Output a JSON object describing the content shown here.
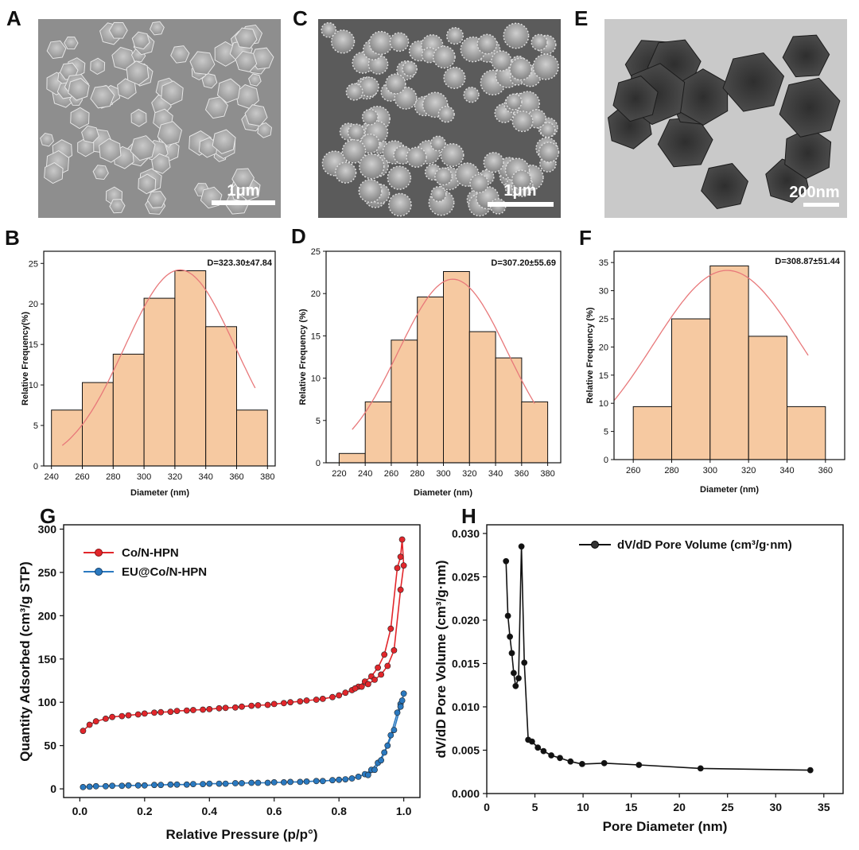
{
  "panel_labels": {
    "A": "A",
    "B": "B",
    "C": "C",
    "D": "D",
    "E": "E",
    "F": "F",
    "G": "G",
    "H": "H"
  },
  "micrographs": [
    {
      "panel": "A",
      "scale_bar": "1μm",
      "tone": "sem-smooth"
    },
    {
      "panel": "C",
      "scale_bar": "1μm",
      "tone": "sem-rough"
    },
    {
      "panel": "E",
      "scale_bar": "200nm",
      "tone": "tem"
    }
  ],
  "colors": {
    "bar_fill": "#f6c9a1",
    "fit_line": "#e8787a",
    "co_n_hpn": "#e2262b",
    "eu_co_n_hpn": "#2a79c0",
    "pore_line": "#111111"
  },
  "chart_data": [
    {
      "panel": "B",
      "type": "bar",
      "annotation": "D=323.30±47.84",
      "xlabel": "Diameter (nm)",
      "ylabel": "Relative Frequency(%)",
      "xlim": [
        235,
        385
      ],
      "ylim": [
        0,
        26.5
      ],
      "xticks": [
        240,
        260,
        280,
        300,
        320,
        340,
        360,
        380
      ],
      "yticks": [
        0,
        5,
        10,
        15,
        20,
        25
      ],
      "bins": [
        [
          240,
          260
        ],
        [
          260,
          280
        ],
        [
          280,
          300
        ],
        [
          300,
          320
        ],
        [
          320,
          340
        ],
        [
          340,
          360
        ],
        [
          360,
          380
        ]
      ],
      "values": [
        6.9,
        10.3,
        13.8,
        20.7,
        24.1,
        17.2,
        6.9
      ],
      "fit": {
        "mu": 323.3,
        "sigma": 47.84,
        "peak": 24.2,
        "from": 247,
        "to": 372
      }
    },
    {
      "panel": "D",
      "type": "bar",
      "annotation": "D=307.20±55.69",
      "xlabel": "Diameter (nm)",
      "ylabel": "Relative Frequency (%)",
      "xlim": [
        210,
        390
      ],
      "ylim": [
        0,
        25
      ],
      "xticks": [
        220,
        240,
        260,
        280,
        300,
        320,
        340,
        360,
        380
      ],
      "yticks": [
        0,
        5,
        10,
        15,
        20,
        25
      ],
      "bins": [
        [
          220,
          240
        ],
        [
          240,
          260
        ],
        [
          260,
          280
        ],
        [
          280,
          300
        ],
        [
          300,
          320
        ],
        [
          320,
          340
        ],
        [
          340,
          360
        ],
        [
          360,
          380
        ]
      ],
      "values": [
        1.1,
        7.2,
        14.5,
        19.6,
        22.6,
        15.5,
        12.4,
        7.2
      ],
      "fit": {
        "mu": 307.2,
        "sigma": 55.69,
        "peak": 21.7,
        "from": 230,
        "to": 370
      }
    },
    {
      "panel": "F",
      "type": "bar",
      "annotation": "D=308.87±51.44",
      "xlabel": "Diameter (nm)",
      "ylabel": "Relative Frequency (%)",
      "xlim": [
        250,
        370
      ],
      "ylim": [
        0,
        37
      ],
      "xticks": [
        260,
        280,
        300,
        320,
        340,
        360
      ],
      "yticks": [
        0,
        5,
        10,
        15,
        20,
        25,
        30,
        35
      ],
      "bins": [
        [
          260,
          280
        ],
        [
          280,
          300
        ],
        [
          300,
          320
        ],
        [
          320,
          340
        ],
        [
          340,
          360
        ]
      ],
      "values": [
        9.4,
        25.0,
        34.4,
        21.9,
        9.4
      ],
      "fit": {
        "mu": 308.87,
        "sigma": 51.44,
        "peak": 33.6,
        "from": 250,
        "to": 351
      }
    },
    {
      "panel": "G",
      "type": "line",
      "xlabel": "Relative Pressure (p/p°)",
      "ylabel": "Quantity Adsorbed (cm³/g STP)",
      "xlim": [
        -0.05,
        1.05
      ],
      "ylim": [
        -10,
        305
      ],
      "xticks": [
        0.0,
        0.2,
        0.4,
        0.6,
        0.8,
        1.0
      ],
      "yticks": [
        0,
        50,
        100,
        150,
        200,
        250,
        300
      ],
      "legend_position": "top-left",
      "series": [
        {
          "name": "Co/N-HPN",
          "color": "#e2262b",
          "x": [
            0.01,
            0.03,
            0.05,
            0.08,
            0.1,
            0.13,
            0.15,
            0.18,
            0.2,
            0.23,
            0.25,
            0.28,
            0.3,
            0.33,
            0.35,
            0.38,
            0.4,
            0.43,
            0.45,
            0.48,
            0.5,
            0.53,
            0.55,
            0.58,
            0.6,
            0.63,
            0.65,
            0.68,
            0.7,
            0.73,
            0.75,
            0.78,
            0.8,
            0.82,
            0.84,
            0.86,
            0.88,
            0.9,
            0.92,
            0.94,
            0.96,
            0.98,
            0.99,
            0.995,
            1.0,
            0.99,
            0.97,
            0.95,
            0.93,
            0.91,
            0.89,
            0.87,
            0.85
          ],
          "y": [
            67,
            74,
            78,
            81,
            83,
            84,
            85,
            86,
            87,
            88,
            88.5,
            89,
            90,
            90.5,
            91,
            91.5,
            92,
            93,
            93.5,
            94,
            95,
            96,
            96.5,
            97,
            98,
            99,
            100,
            101,
            102,
            103,
            104,
            106,
            108,
            111,
            114,
            118,
            124,
            130,
            140,
            155,
            185,
            255,
            268,
            288,
            258,
            230,
            160,
            142,
            132,
            126,
            121,
            118,
            116
          ]
        },
        {
          "name": "EU@Co/N-HPN",
          "color": "#2a79c0",
          "x": [
            0.01,
            0.03,
            0.05,
            0.08,
            0.1,
            0.13,
            0.15,
            0.18,
            0.2,
            0.23,
            0.25,
            0.28,
            0.3,
            0.33,
            0.35,
            0.38,
            0.4,
            0.43,
            0.45,
            0.48,
            0.5,
            0.53,
            0.55,
            0.58,
            0.6,
            0.63,
            0.65,
            0.68,
            0.7,
            0.73,
            0.75,
            0.78,
            0.8,
            0.82,
            0.84,
            0.86,
            0.88,
            0.9,
            0.92,
            0.94,
            0.96,
            0.98,
            0.99,
            0.995,
            1.0,
            0.99,
            0.97,
            0.95,
            0.93,
            0.91,
            0.89
          ],
          "y": [
            2,
            2.5,
            3,
            3,
            3.5,
            3.5,
            4,
            4,
            4,
            4.5,
            4.5,
            5,
            5,
            5,
            5.5,
            5.5,
            6,
            6,
            6,
            6.5,
            6.5,
            7,
            7,
            7,
            7.5,
            7.5,
            8,
            8,
            8.5,
            9,
            9,
            10,
            10.5,
            11,
            12,
            14,
            17,
            22,
            30,
            42,
            62,
            88,
            98,
            102,
            110,
            95,
            68,
            50,
            33,
            22,
            16
          ]
        }
      ]
    },
    {
      "panel": "H",
      "type": "line",
      "xlabel": "Pore Diameter (nm)",
      "ylabel": "dV/dD Pore Volume (cm³/g·nm)",
      "xlim": [
        0,
        37
      ],
      "ylim": [
        0,
        0.031
      ],
      "xticks": [
        0,
        5,
        10,
        15,
        20,
        25,
        30,
        35
      ],
      "yticks": [
        0.0,
        0.005,
        0.01,
        0.015,
        0.02,
        0.025,
        0.03
      ],
      "legend_position": "top-right",
      "series": [
        {
          "name": "dV/dD Pore Volume (cm³/g·nm)",
          "color": "#111111",
          "x": [
            2.0,
            2.2,
            2.4,
            2.6,
            2.8,
            3.0,
            3.3,
            3.6,
            3.9,
            4.3,
            4.7,
            5.3,
            5.9,
            6.7,
            7.6,
            8.7,
            9.9,
            12.2,
            15.8,
            22.2,
            33.6
          ],
          "y": [
            0.0268,
            0.0205,
            0.0181,
            0.0162,
            0.0139,
            0.0124,
            0.0133,
            0.0285,
            0.0151,
            0.0062,
            0.006,
            0.0053,
            0.0049,
            0.0044,
            0.0041,
            0.0037,
            0.0034,
            0.0035,
            0.0033,
            0.0029,
            0.0027
          ]
        }
      ]
    }
  ]
}
